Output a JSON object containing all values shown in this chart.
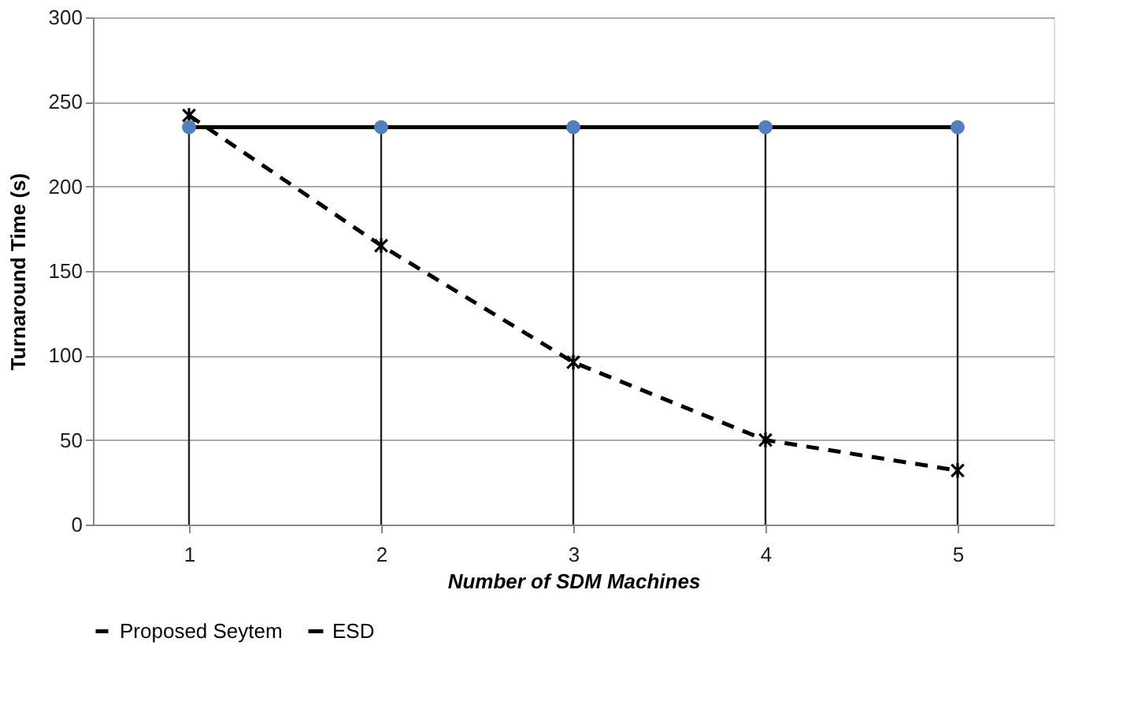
{
  "chart_data": {
    "type": "line",
    "xlabel": "Number of SDM Machines",
    "ylabel": "Turnaround Time (s)",
    "categories": [
      "1",
      "2",
      "3",
      "4",
      "5"
    ],
    "series": [
      {
        "name": "Proposed Seytem",
        "color": "#000000",
        "values": [
          242,
          165,
          96,
          50,
          32
        ],
        "line_style": "dashed",
        "marker": "cross"
      },
      {
        "name": "ESD",
        "color": "#000000",
        "colors": [
          "#4f81bd",
          "#4f81bd",
          "#4f81bd",
          "#4f81bd",
          "#4f81bd"
        ],
        "values": [
          235,
          235,
          235,
          235,
          235
        ],
        "line_style": "solid",
        "marker": "circle"
      }
    ],
    "ylim": [
      0,
      300
    ],
    "yticks": [
      0,
      50,
      100,
      150,
      200,
      250,
      300
    ],
    "grid": true,
    "legend": "bottom"
  }
}
